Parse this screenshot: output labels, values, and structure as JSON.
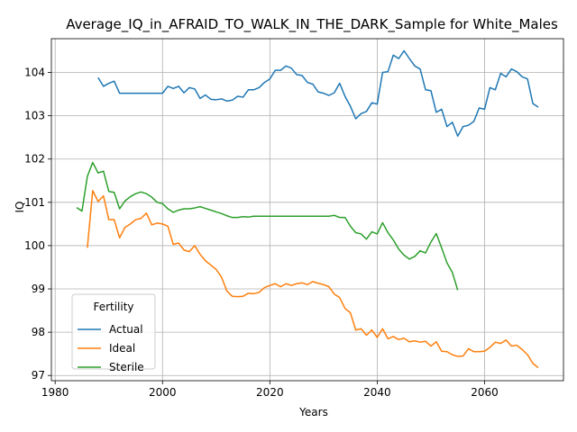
{
  "chart_data": {
    "type": "line",
    "title": "Average_IQ_in_AFRAID_TO_WALK_IN_THE_DARK_Sample for White_Males",
    "xlabel": "Years",
    "ylabel": "IQ",
    "xlim": [
      1979.3,
      2074.7
    ],
    "ylim": [
      96.88,
      104.78
    ],
    "xticks": [
      1980,
      2000,
      2020,
      2040,
      2060
    ],
    "yticks": [
      97,
      98,
      99,
      100,
      101,
      102,
      103,
      104
    ],
    "grid": true,
    "legend": {
      "title": "Fertility",
      "position": "lower-left"
    },
    "series": [
      {
        "name": "Actual",
        "color": "#1f77b4",
        "x": [
          1988,
          1989,
          1990,
          1991,
          1992,
          1993,
          1994,
          1995,
          1996,
          1997,
          1998,
          1999,
          2000,
          2001,
          2002,
          2003,
          2004,
          2005,
          2006,
          2007,
          2008,
          2009,
          2010,
          2011,
          2012,
          2013,
          2014,
          2015,
          2016,
          2017,
          2018,
          2019,
          2020,
          2021,
          2022,
          2023,
          2024,
          2025,
          2026,
          2027,
          2028,
          2029,
          2030,
          2031,
          2032,
          2033,
          2034,
          2035,
          2036,
          2037,
          2038,
          2039,
          2040,
          2041,
          2042,
          2043,
          2044,
          2045,
          2046,
          2047,
          2048,
          2049,
          2050,
          2051,
          2052,
          2053,
          2054,
          2055,
          2056,
          2057,
          2058,
          2059,
          2060,
          2061,
          2062,
          2063,
          2064,
          2065,
          2066,
          2067,
          2068,
          2069,
          2070
        ],
        "values": [
          103.88,
          103.68,
          103.75,
          103.8,
          103.52,
          103.52,
          103.52,
          103.52,
          103.52,
          103.52,
          103.52,
          103.52,
          103.52,
          103.68,
          103.63,
          103.68,
          103.53,
          103.65,
          103.62,
          103.4,
          103.48,
          103.38,
          103.37,
          103.39,
          103.34,
          103.36,
          103.45,
          103.43,
          103.6,
          103.6,
          103.65,
          103.77,
          103.85,
          104.05,
          104.05,
          104.15,
          104.1,
          103.95,
          103.93,
          103.77,
          103.73,
          103.55,
          103.52,
          103.47,
          103.53,
          103.75,
          103.45,
          103.22,
          102.93,
          103.05,
          103.1,
          103.3,
          103.27,
          104.0,
          104.02,
          104.4,
          104.32,
          104.5,
          104.32,
          104.15,
          104.08,
          103.6,
          103.58,
          103.08,
          103.15,
          102.75,
          102.85,
          102.53,
          102.75,
          102.78,
          102.87,
          103.18,
          103.15,
          103.65,
          103.6,
          103.98,
          103.9,
          104.08,
          104.02,
          103.9,
          103.85,
          103.28,
          103.2
        ]
      },
      {
        "name": "Ideal",
        "color": "#ff7f0e",
        "x": [
          1986,
          1987,
          1988,
          1989,
          1990,
          1991,
          1992,
          1993,
          1994,
          1995,
          1996,
          1997,
          1998,
          1999,
          2000,
          2001,
          2002,
          2003,
          2004,
          2005,
          2006,
          2007,
          2008,
          2009,
          2010,
          2011,
          2012,
          2013,
          2014,
          2015,
          2016,
          2017,
          2018,
          2019,
          2020,
          2021,
          2022,
          2023,
          2024,
          2025,
          2026,
          2027,
          2028,
          2029,
          2030,
          2031,
          2032,
          2033,
          2034,
          2035,
          2036,
          2037,
          2038,
          2039,
          2040,
          2041,
          2042,
          2043,
          2044,
          2045,
          2046,
          2047,
          2048,
          2049,
          2050,
          2051,
          2052,
          2053,
          2054,
          2055,
          2056,
          2057,
          2058,
          2059,
          2060,
          2061,
          2062,
          2063,
          2064,
          2065,
          2066,
          2067,
          2068,
          2069,
          2070
        ],
        "values": [
          99.95,
          101.27,
          101.02,
          101.15,
          100.6,
          100.6,
          100.18,
          100.42,
          100.5,
          100.6,
          100.63,
          100.75,
          100.48,
          100.52,
          100.5,
          100.45,
          100.03,
          100.06,
          99.9,
          99.86,
          100.0,
          99.8,
          99.65,
          99.55,
          99.45,
          99.27,
          98.95,
          98.83,
          98.82,
          98.83,
          98.9,
          98.89,
          98.92,
          99.03,
          99.08,
          99.12,
          99.05,
          99.12,
          99.08,
          99.12,
          99.14,
          99.1,
          99.17,
          99.13,
          99.1,
          99.05,
          98.88,
          98.8,
          98.55,
          98.45,
          98.05,
          98.08,
          97.93,
          98.05,
          97.88,
          98.08,
          97.85,
          97.9,
          97.83,
          97.86,
          97.78,
          97.8,
          97.77,
          97.79,
          97.68,
          97.78,
          97.56,
          97.55,
          97.48,
          97.44,
          97.45,
          97.62,
          97.55,
          97.55,
          97.56,
          97.65,
          97.77,
          97.74,
          97.82,
          97.68,
          97.7,
          97.6,
          97.48,
          97.28,
          97.18
        ]
      },
      {
        "name": "Sterile",
        "color": "#2ca02c",
        "x": [
          1984,
          1985,
          1986,
          1987,
          1988,
          1989,
          1990,
          1991,
          1992,
          1993,
          1994,
          1995,
          1996,
          1997,
          1998,
          1999,
          2000,
          2001,
          2002,
          2003,
          2004,
          2005,
          2006,
          2007,
          2008,
          2009,
          2010,
          2011,
          2012,
          2013,
          2014,
          2015,
          2016,
          2017,
          2018,
          2019,
          2020,
          2021,
          2022,
          2023,
          2024,
          2025,
          2026,
          2027,
          2028,
          2029,
          2030,
          2031,
          2032,
          2033,
          2034,
          2035,
          2036,
          2037,
          2038,
          2039,
          2040,
          2041,
          2042,
          2043,
          2044,
          2045,
          2046,
          2047,
          2048,
          2049,
          2050,
          2051,
          2052,
          2053,
          2054,
          2055
        ],
        "values": [
          100.88,
          100.8,
          101.6,
          101.92,
          101.68,
          101.72,
          101.25,
          101.23,
          100.85,
          101.03,
          101.13,
          101.2,
          101.24,
          101.2,
          101.12,
          101.0,
          100.97,
          100.85,
          100.77,
          100.82,
          100.85,
          100.85,
          100.87,
          100.9,
          100.86,
          100.82,
          100.78,
          100.74,
          100.69,
          100.65,
          100.65,
          100.67,
          100.66,
          100.68,
          100.68,
          100.68,
          100.68,
          100.68,
          100.68,
          100.68,
          100.68,
          100.68,
          100.68,
          100.68,
          100.68,
          100.68,
          100.68,
          100.68,
          100.7,
          100.65,
          100.65,
          100.45,
          100.3,
          100.27,
          100.15,
          100.32,
          100.27,
          100.53,
          100.3,
          100.13,
          99.92,
          99.78,
          99.69,
          99.75,
          99.88,
          99.83,
          100.08,
          100.28,
          99.95,
          99.6,
          99.38,
          98.97
        ]
      }
    ]
  }
}
